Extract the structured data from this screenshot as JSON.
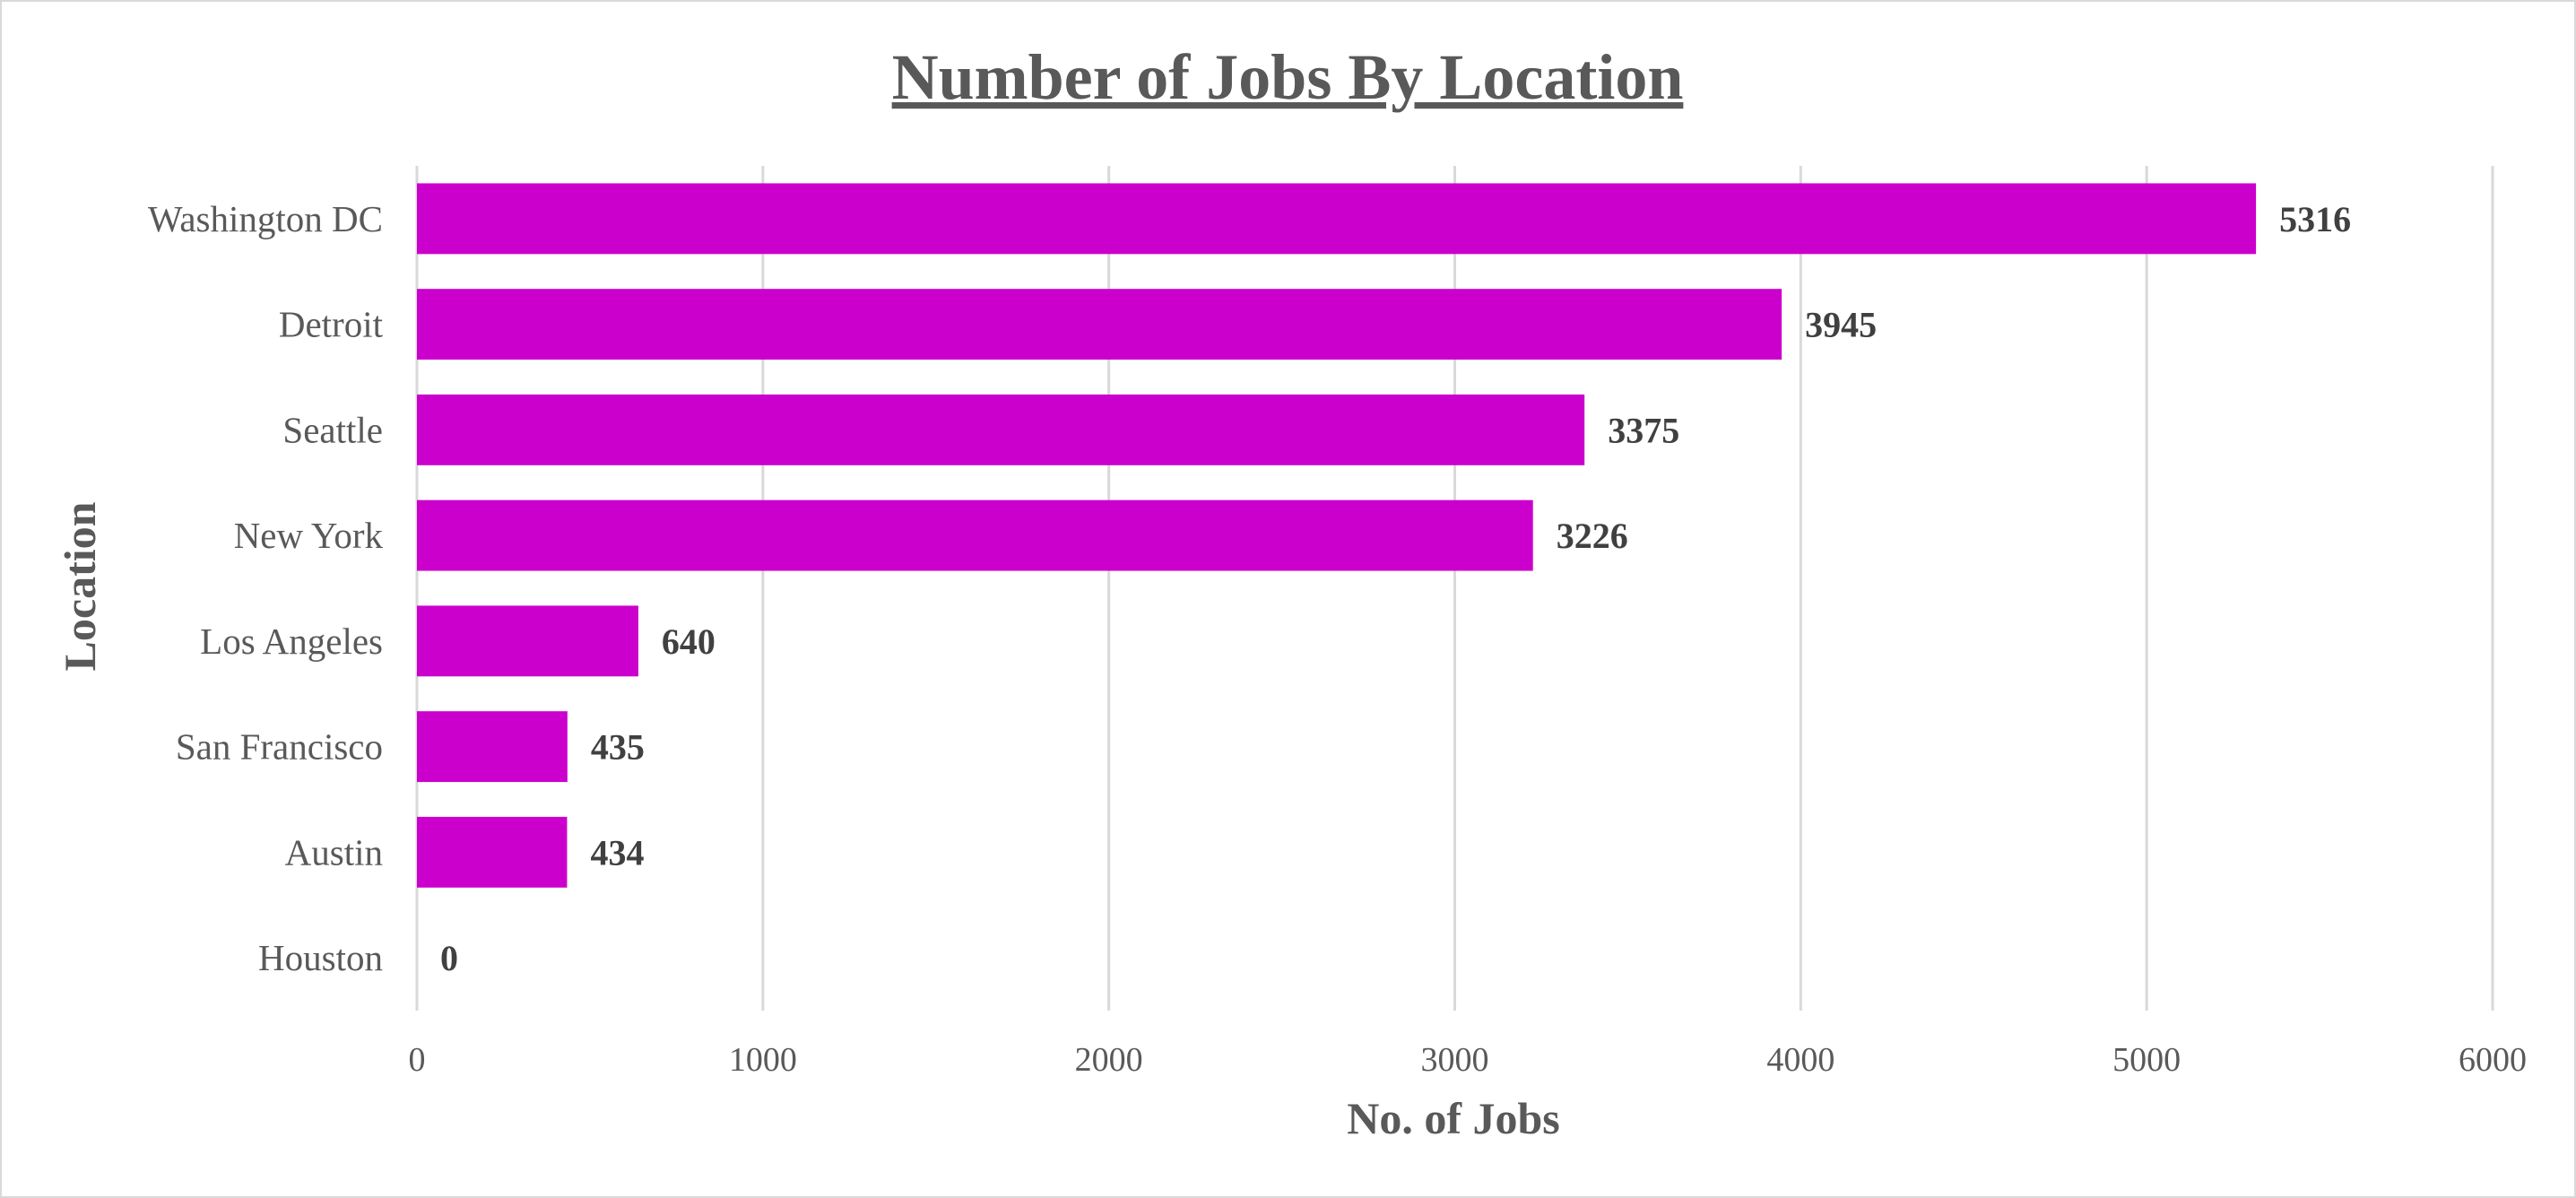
{
  "chart_data": {
    "type": "bar",
    "orientation": "horizontal",
    "title": "Number of Jobs By Location",
    "xlabel": "No. of Jobs",
    "ylabel": "Location",
    "categories": [
      "Washington DC",
      "Detroit",
      "Seattle",
      "New York",
      "Los Angeles",
      "San Francisco",
      "Austin",
      "Houston"
    ],
    "values": [
      5316,
      3945,
      3375,
      3226,
      640,
      435,
      434,
      0
    ],
    "data_labels": [
      "5316",
      "3945",
      "3375",
      "3226",
      "640",
      "435",
      "434",
      "0"
    ],
    "xlim": [
      0,
      6000
    ],
    "x_ticks": [
      0,
      1000,
      2000,
      3000,
      4000,
      5000,
      6000
    ],
    "x_tick_labels": [
      "0",
      "1000",
      "2000",
      "3000",
      "4000",
      "5000",
      "6000"
    ],
    "grid": "vertical",
    "legend": "none",
    "bar_color": "#CC00CC",
    "gridline_color": "#d9d9d9",
    "text_color": "#595959"
  }
}
